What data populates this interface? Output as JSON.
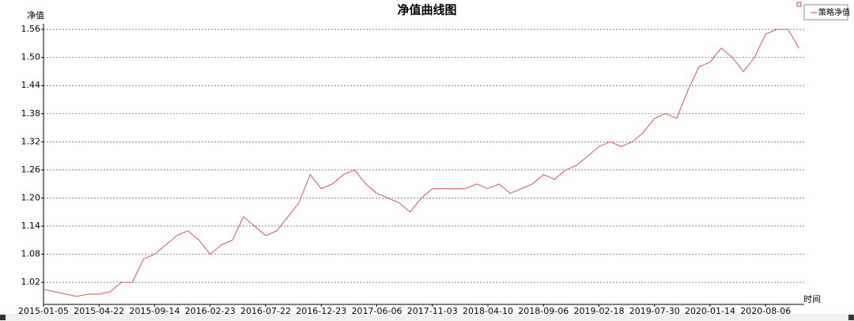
{
  "chart_data": {
    "type": "line",
    "title": "净值曲线图",
    "y_label": "净值",
    "x_label": "时间",
    "x": [
      "2015-01-05",
      "2015-01-26",
      "2015-02-13",
      "2015-03-06",
      "2015-03-27",
      "2015-04-22",
      "2015-05-13",
      "2015-06-03",
      "2015-06-24",
      "2015-07-15",
      "2015-09-14",
      "2015-10-08",
      "2015-10-29",
      "2015-11-19",
      "2015-12-10",
      "2016-02-23",
      "2016-03-15",
      "2016-04-06",
      "2016-04-27",
      "2016-05-18",
      "2016-07-22",
      "2016-08-12",
      "2016-09-02",
      "2016-09-23",
      "2016-10-14",
      "2016-12-23",
      "2017-01-13",
      "2017-02-10",
      "2017-03-03",
      "2017-03-24",
      "2017-06-06",
      "2017-06-27",
      "2017-07-18",
      "2017-08-08",
      "2017-08-29",
      "2017-11-03",
      "2017-11-24",
      "2017-12-15",
      "2018-01-08",
      "2018-01-29",
      "2018-04-10",
      "2018-05-02",
      "2018-05-23",
      "2018-06-13",
      "2018-07-04",
      "2018-09-06",
      "2018-09-27",
      "2018-10-25",
      "2018-11-15",
      "2018-12-06",
      "2019-02-18",
      "2019-03-11",
      "2019-04-01",
      "2019-04-22",
      "2019-05-13",
      "2019-07-30",
      "2019-08-20",
      "2019-09-10",
      "2019-10-01",
      "2019-10-22",
      "2020-01-14",
      "2020-02-04",
      "2020-02-25",
      "2020-03-17",
      "2020-04-07",
      "2020-08-06",
      "2020-08-27",
      "2020-09-17",
      "2020-10-08"
    ],
    "series": [
      {
        "name": "策略净值",
        "color": "#d9534f",
        "values": [
          1.005,
          1.0,
          0.995,
          0.99,
          0.995,
          0.995,
          1.0,
          1.02,
          1.02,
          1.07,
          1.08,
          1.1,
          1.12,
          1.13,
          1.11,
          1.08,
          1.1,
          1.11,
          1.16,
          1.14,
          1.12,
          1.13,
          1.16,
          1.19,
          1.25,
          1.22,
          1.23,
          1.25,
          1.26,
          1.23,
          1.21,
          1.2,
          1.19,
          1.17,
          1.2,
          1.22,
          1.22,
          1.22,
          1.22,
          1.23,
          1.22,
          1.23,
          1.21,
          1.22,
          1.23,
          1.25,
          1.24,
          1.26,
          1.27,
          1.29,
          1.31,
          1.32,
          1.31,
          1.32,
          1.34,
          1.37,
          1.38,
          1.37,
          1.43,
          1.48,
          1.49,
          1.52,
          1.5,
          1.47,
          1.5,
          1.55,
          1.56,
          1.56,
          1.52
        ]
      }
    ],
    "ylim": [
      0.973,
      1.572
    ],
    "yticks": [
      1.02,
      1.08,
      1.14,
      {
        "value": 1.2,
        "label": "1.20"
      },
      1.26,
      1.32,
      1.38,
      1.44,
      {
        "value": 1.5,
        "label": "1.50"
      },
      1.56
    ],
    "xticks": [
      "2015-01-05",
      "2015-04-22",
      "2015-09-14",
      "2016-02-23",
      "2016-07-22",
      "2016-12-23",
      "2017-06-06",
      "2017-11-03",
      "2018-04-10",
      "2018-09-06",
      "2019-02-18",
      "2019-07-30",
      "2020-01-14",
      "2020-08-06"
    ],
    "grid": true
  }
}
